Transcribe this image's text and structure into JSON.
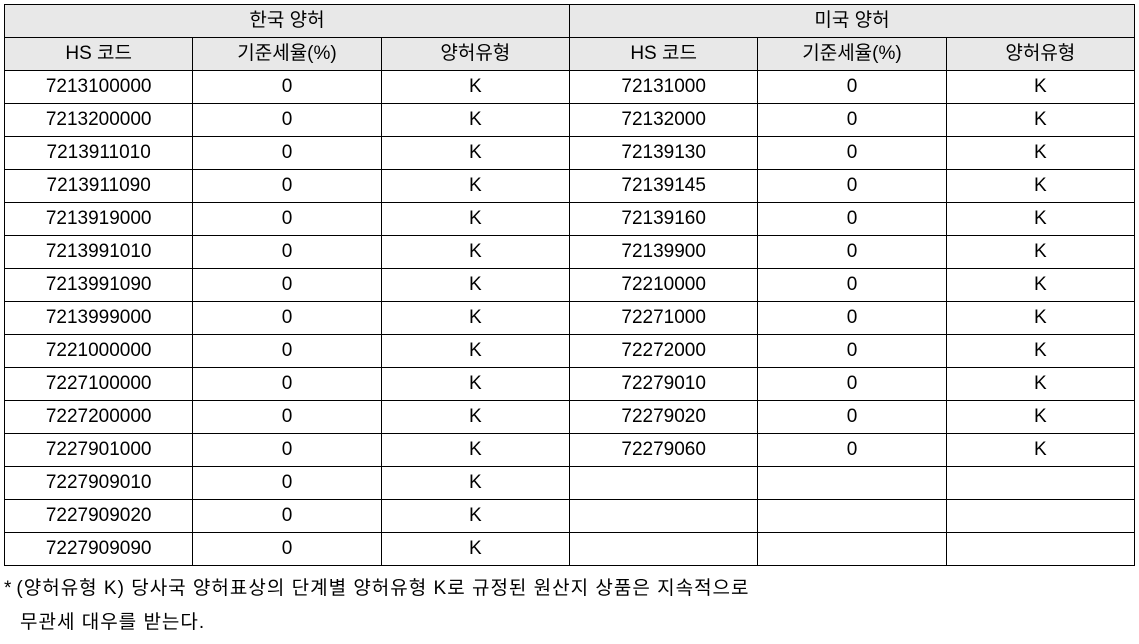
{
  "table": {
    "background_header": "#e8e8e8",
    "border_color": "#000000",
    "font_size": 19,
    "group_headers": [
      "한국 양허",
      "미국 양허"
    ],
    "columns": [
      "HS 코드",
      "기준세율(%)",
      "양허유형",
      "HS 코드",
      "기준세율(%)",
      "양허유형"
    ],
    "rows": [
      [
        "7213100000",
        "0",
        "K",
        "72131000",
        "0",
        "K"
      ],
      [
        "7213200000",
        "0",
        "K",
        "72132000",
        "0",
        "K"
      ],
      [
        "7213911010",
        "0",
        "K",
        "72139130",
        "0",
        "K"
      ],
      [
        "7213911090",
        "0",
        "K",
        "72139145",
        "0",
        "K"
      ],
      [
        "7213919000",
        "0",
        "K",
        "72139160",
        "0",
        "K"
      ],
      [
        "7213991010",
        "0",
        "K",
        "72139900",
        "0",
        "K"
      ],
      [
        "7213991090",
        "0",
        "K",
        "72210000",
        "0",
        "K"
      ],
      [
        "7213999000",
        "0",
        "K",
        "72271000",
        "0",
        "K"
      ],
      [
        "7221000000",
        "0",
        "K",
        "72272000",
        "0",
        "K"
      ],
      [
        "7227100000",
        "0",
        "K",
        "72279010",
        "0",
        "K"
      ],
      [
        "7227200000",
        "0",
        "K",
        "72279020",
        "0",
        "K"
      ],
      [
        "7227901000",
        "0",
        "K",
        "72279060",
        "0",
        "K"
      ],
      [
        "7227909010",
        "0",
        "K",
        "",
        "",
        ""
      ],
      [
        "7227909020",
        "0",
        "K",
        "",
        "",
        ""
      ],
      [
        "7227909090",
        "0",
        "K",
        "",
        "",
        ""
      ]
    ]
  },
  "footnote": {
    "star": "*",
    "line1": "(양허유형 K) 당사국 양허표상의 단계별 양허유형 K로 규정된 원산지 상품은 지속적으로",
    "line2": "무관세 대우를 받는다."
  }
}
